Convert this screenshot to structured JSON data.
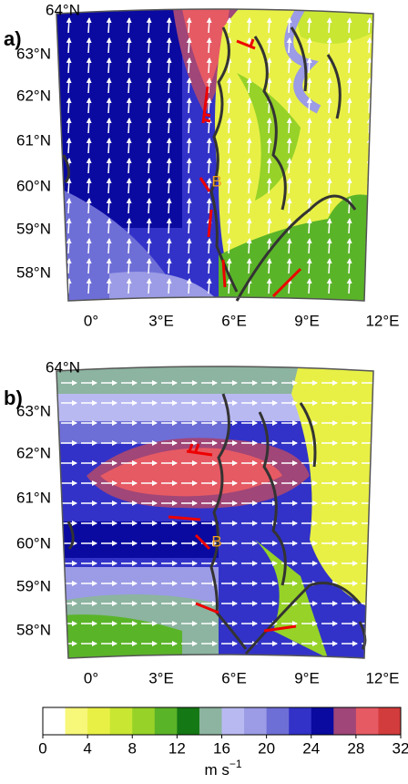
{
  "panels": [
    {
      "label": "a)",
      "lat_labels": [
        "64°N",
        "63°N",
        "62°N",
        "61°N",
        "60°N",
        "59°N",
        "58°N"
      ],
      "lon_labels": [
        "0°",
        "3°E",
        "6°E",
        "9°E",
        "12°E"
      ],
      "marker": "B"
    },
    {
      "label": "b)",
      "lat_labels": [
        "64°N",
        "63°N",
        "62°N",
        "61°N",
        "60°N",
        "59°N",
        "58°N"
      ],
      "lon_labels": [
        "0°",
        "3°E",
        "6°E",
        "9°E",
        "12°E"
      ],
      "marker": "B"
    }
  ],
  "colorbar": {
    "ticks": [
      0,
      4,
      8,
      12,
      16,
      20,
      24,
      28,
      32
    ],
    "lim": [
      0,
      32
    ],
    "colors": [
      "#ffffff",
      "#f7f77a",
      "#e8f046",
      "#c8e632",
      "#96d228",
      "#5ab428",
      "#147814",
      "#8cb4a0",
      "#b9b9f2",
      "#9b9be6",
      "#6e6ed7",
      "#3232c8",
      "#0a0aa0",
      "#a04678",
      "#e65a64",
      "#d23c3c"
    ],
    "unit": "m s",
    "unit_exponent": "−1"
  }
}
